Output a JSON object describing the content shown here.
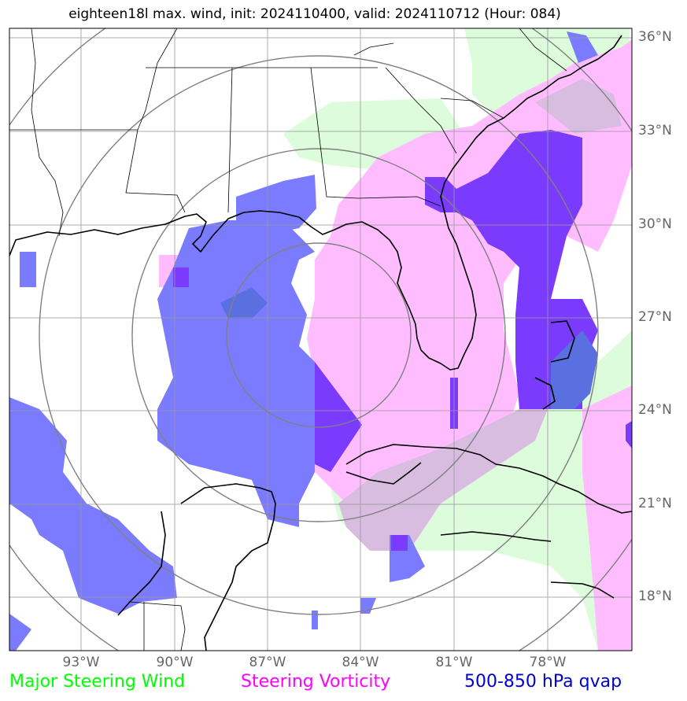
{
  "title": "eighteen18l max. wind, init: 2024110400, valid: 2024110712 (Hour: 084)",
  "lat_labels": [
    "36°N",
    "33°N",
    "30°N",
    "27°N",
    "24°N",
    "21°N",
    "18°N"
  ],
  "lon_labels": [
    "93°W",
    "90°W",
    "87°W",
    "84°W",
    "81°W",
    "78°W"
  ],
  "legend": {
    "wind": "Major Steering Wind",
    "vorticity": "Steering Vorticity",
    "qvap": "500-850 hPa qvap"
  },
  "colors": {
    "wind": "#00ff00",
    "vorticity": "#ff00ff",
    "qvap": "#0000cc",
    "wind_fill": "#dcfcdc",
    "vorticity_fill": "#ffbdff",
    "qvap_fill": "#7b7bff",
    "overlap_fill": "#7b3bff",
    "grid": "#999999",
    "rings": "#808080"
  }
}
